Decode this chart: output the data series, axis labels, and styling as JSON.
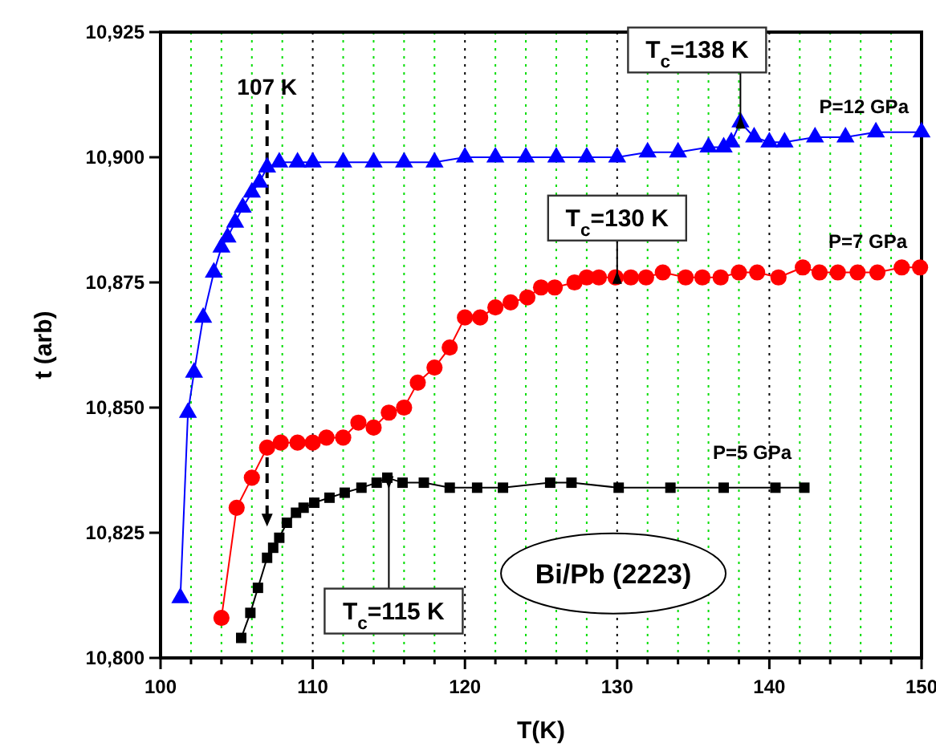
{
  "chart_data": {
    "type": "line",
    "xlabel": "T(K)",
    "ylabel": "t (arb)",
    "xlim": [
      100,
      150
    ],
    "xticks": [
      100,
      {
        "value": 102,
        "label": null
      },
      {
        "value": 104,
        "label": null
      },
      {
        "value": 106,
        "label": null
      },
      {
        "value": 108,
        "label": null
      },
      110,
      {
        "value": 112,
        "label": null
      },
      {
        "value": 114,
        "label": null
      },
      {
        "value": 116,
        "label": null
      },
      {
        "value": 118,
        "label": null
      },
      120,
      {
        "value": 122,
        "label": null
      },
      {
        "value": 124,
        "label": null
      },
      {
        "value": 126,
        "label": null
      },
      {
        "value": 128,
        "label": null
      },
      130,
      {
        "value": 132,
        "label": null
      },
      {
        "value": 134,
        "label": null
      },
      {
        "value": 136,
        "label": null
      },
      {
        "value": 138,
        "label": null
      },
      140,
      {
        "value": 142,
        "label": null
      },
      {
        "value": 144,
        "label": null
      },
      {
        "value": 146,
        "label": null
      },
      {
        "value": 148,
        "label": null
      },
      150
    ],
    "ylim": [
      10800,
      10925
    ],
    "yticks": [
      {
        "value": 10800,
        "label": "10,800"
      },
      {
        "value": 10825,
        "label": "10,825"
      },
      {
        "value": 10850,
        "label": "10,850"
      },
      {
        "value": 10875,
        "label": "10,875"
      },
      {
        "value": 10900,
        "label": "10,900"
      },
      {
        "value": 10925,
        "label": "10,925"
      }
    ],
    "grid": "x",
    "series": [
      {
        "name": "P=12 GPa",
        "color": "#0000ff",
        "marker": "triangle",
        "x": [
          101.3,
          101.8,
          102.2,
          102.8,
          103.5,
          104.0,
          104.4,
          104.9,
          105.4,
          106.0,
          106.5,
          107.0,
          107.8,
          109,
          110,
          112,
          114,
          116,
          118,
          120,
          122,
          124,
          126,
          128,
          130,
          132,
          134,
          136,
          137,
          137.5,
          138.1,
          139,
          140,
          141,
          143,
          145,
          147,
          150
        ],
        "values": [
          10812,
          10849,
          10857,
          10868,
          10877,
          10882,
          10884,
          10887,
          10890,
          10893,
          10895,
          10898,
          10899,
          10899,
          10899,
          10899,
          10899,
          10899,
          10899,
          10900,
          10900,
          10900,
          10900,
          10900,
          10900,
          10901,
          10901,
          10902,
          10902,
          10903,
          10907,
          10904,
          10903,
          10903,
          10904,
          10904,
          10905,
          10905
        ]
      },
      {
        "name": "P=7 GPa",
        "color": "#ff0000",
        "marker": "circle",
        "x": [
          104.0,
          105.0,
          106.0,
          107.0,
          107.9,
          109.0,
          110.0,
          110.9,
          112.0,
          113.0,
          114.0,
          115.0,
          116.0,
          116.9,
          118.0,
          119.0,
          120.0,
          121.0,
          122.0,
          123.0,
          124.1,
          125.0,
          125.9,
          127.2,
          128.0,
          128.8,
          129.9,
          130.9,
          131.9,
          133.0,
          134.5,
          135.6,
          136.8,
          138.0,
          139.2,
          140.6,
          142.2,
          143.3,
          144.5,
          145.8,
          147.1,
          148.7,
          149.9
        ],
        "values": [
          10808,
          10830,
          10836,
          10842,
          10843,
          10843,
          10843,
          10844,
          10844,
          10847,
          10846,
          10849,
          10850,
          10855,
          10858,
          10862,
          10868,
          10868,
          10870,
          10871,
          10872,
          10874,
          10874,
          10875,
          10876,
          10876,
          10876,
          10876,
          10876,
          10877,
          10876,
          10876,
          10876,
          10877,
          10877,
          10876,
          10878,
          10877,
          10877,
          10877,
          10877,
          10878,
          10878
        ]
      },
      {
        "name": "P=5 GPa",
        "color": "#000000",
        "marker": "square",
        "x": [
          105.3,
          105.9,
          106.4,
          107.0,
          107.4,
          107.8,
          108.3,
          108.9,
          109.4,
          110.1,
          111.1,
          112.1,
          113.2,
          114.2,
          114.9,
          115.9,
          117.3,
          119.0,
          120.8,
          122.5,
          125.6,
          127.0,
          130.1,
          133.5,
          137.0,
          140.4,
          142.3
        ],
        "values": [
          10804,
          10809,
          10814,
          10820,
          10822,
          10824,
          10827,
          10829,
          10830,
          10831,
          10832,
          10833,
          10834,
          10835,
          10836,
          10835,
          10835,
          10834,
          10834,
          10834,
          10835,
          10835,
          10834,
          10834,
          10834,
          10834,
          10834
        ]
      }
    ],
    "ref_lines": [
      {
        "axis": "x",
        "value": 107,
        "label": "107 K",
        "line_style": "dashed"
      }
    ],
    "annotations": [
      {
        "text": "T$_{c}$=138 K",
        "x": 138.1,
        "y": 10907
      },
      {
        "text": "T$_{c}$=130 K",
        "x": 130,
        "y": 10876
      },
      {
        "text": "T$_{c}$=115 K",
        "x": 115,
        "y": 10835
      },
      "Bi/Pb (2223)"
    ]
  }
}
